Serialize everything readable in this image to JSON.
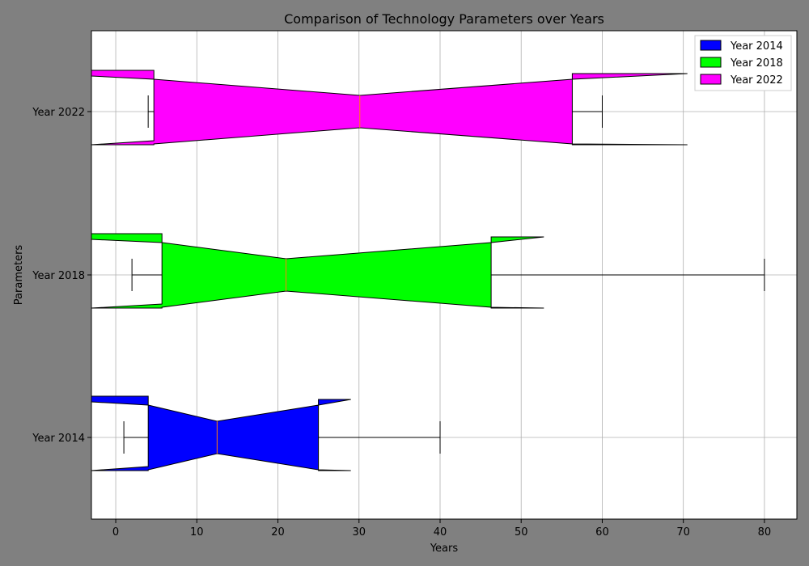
{
  "chart_data": {
    "type": "notched-horizontal-boxplot",
    "title": "Comparison of Technology Parameters over Years",
    "xlabel": "Years",
    "ylabel": "Parameters",
    "xlim": [
      -3,
      84
    ],
    "x_ticks": [
      0,
      10,
      20,
      30,
      40,
      50,
      60,
      70,
      80
    ],
    "grid": true,
    "legend_position": "top-right",
    "series": [
      {
        "name": "Year 2014",
        "color": "#0000ff",
        "whisker_low": 1,
        "q1": 4,
        "median": 12.5,
        "q3": 25,
        "whisker_high": 40,
        "notch_low": -3,
        "notch_high": 29
      },
      {
        "name": "Year 2018",
        "color": "#00ff00",
        "whisker_low": 2,
        "q1": 5.7,
        "median": 21,
        "q3": 46.3,
        "whisker_high": 80,
        "notch_low": -3,
        "notch_high": 52.8
      },
      {
        "name": "Year 2022",
        "color": "#ff00ff",
        "whisker_low": 4,
        "q1": 4.7,
        "median": 30.1,
        "q3": 56.3,
        "whisker_high": 60,
        "notch_low": -3,
        "notch_high": 70.5
      }
    ]
  }
}
